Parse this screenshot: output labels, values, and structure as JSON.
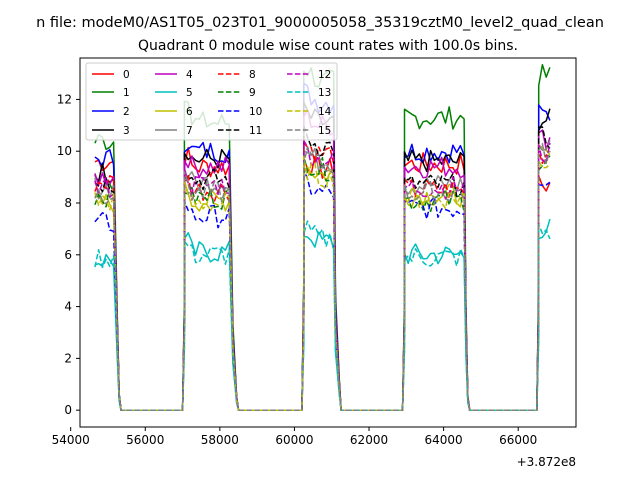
{
  "chart_data": {
    "type": "line",
    "suptitle": "n file: modeM0/AS1T05_023T01_9000005058_35319cztM0_level2_quad_clean",
    "title": "Quadrant 0 module wise count rates with 100.0s bins.",
    "xlabel": "",
    "ylabel": "",
    "x_offset_label": "+3.872e8",
    "xlim": [
      54250,
      67550
    ],
    "ylim": [
      -0.65,
      13.6
    ],
    "x_ticks": [
      54000,
      56000,
      58000,
      60000,
      62000,
      64000,
      66000
    ],
    "x_tick_labels": [
      "54000",
      "56000",
      "58000",
      "60000",
      "62000",
      "64000",
      "66000"
    ],
    "y_ticks": [
      0,
      2,
      4,
      6,
      8,
      10,
      12
    ],
    "y_tick_labels": [
      "0",
      "2",
      "4",
      "6",
      "8",
      "10",
      "12"
    ],
    "legend_position": "top-left",
    "legend_columns": 4,
    "segments": [
      {
        "start": 54650,
        "end": 55150
      },
      {
        "start": 57050,
        "end": 58250
      },
      {
        "start": 60250,
        "end": 61050
      },
      {
        "start": 62950,
        "end": 64550
      },
      {
        "start": 66550,
        "end": 66850
      }
    ],
    "gaps": [
      {
        "from": 55150,
        "to": 57050,
        "ramp_x": [
          55250,
          55300
        ],
        "ramp_frac": [
          0.35,
          0.06
        ]
      },
      {
        "from": 58250,
        "to": 60250,
        "ramp_x": [
          58350,
          58450
        ],
        "ramp_frac": [
          0.3,
          0.05
        ]
      },
      {
        "from": 61050,
        "to": 62950,
        "ramp_x": [
          61100,
          61200
        ],
        "ramp_frac": [
          0.35,
          0.1
        ]
      },
      {
        "from": 64550,
        "to": 66550,
        "ramp_x": [
          64600,
          64650
        ],
        "ramp_frac": [
          0.35,
          0.05
        ]
      }
    ],
    "series": [
      {
        "name": "0",
        "color": "#ff0000",
        "dash": "solid",
        "levels": [
          9.6,
          9.4,
          9.3,
          9.5,
          8.7
        ]
      },
      {
        "name": "1",
        "color": "#008000",
        "dash": "solid",
        "levels": [
          10.4,
          11.1,
          12.7,
          11.3,
          12.9
        ]
      },
      {
        "name": "2",
        "color": "#0000ff",
        "dash": "solid",
        "levels": [
          9.7,
          10.0,
          11.9,
          10.0,
          11.4
        ]
      },
      {
        "name": "3",
        "color": "#000000",
        "dash": "solid",
        "levels": [
          9.2,
          9.7,
          11.1,
          9.6,
          11.2
        ]
      },
      {
        "name": "4",
        "color": "#bf00bf",
        "dash": "solid",
        "levels": [
          9.0,
          9.4,
          11.0,
          9.4,
          10.5
        ]
      },
      {
        "name": "5",
        "color": "#00bfbf",
        "dash": "solid",
        "levels": [
          5.8,
          6.1,
          6.5,
          6.0,
          7.0
        ]
      },
      {
        "name": "6",
        "color": "#bfbf00",
        "dash": "solid",
        "levels": [
          8.0,
          8.1,
          9.1,
          8.3,
          9.8
        ]
      },
      {
        "name": "7",
        "color": "#808080",
        "dash": "solid",
        "levels": [
          8.6,
          8.8,
          9.6,
          8.7,
          10.1
        ]
      },
      {
        "name": "8",
        "color": "#ff0000",
        "dash": "dashed",
        "levels": [
          8.8,
          8.5,
          9.9,
          8.5,
          9.9
        ]
      },
      {
        "name": "9",
        "color": "#008000",
        "dash": "dashed",
        "levels": [
          8.3,
          8.2,
          9.3,
          8.1,
          9.6
        ]
      },
      {
        "name": "10",
        "color": "#0000ff",
        "dash": "dashed",
        "levels": [
          7.2,
          7.5,
          8.4,
          7.8,
          9.0
        ]
      },
      {
        "name": "11",
        "color": "#000000",
        "dash": "dashed",
        "levels": [
          8.8,
          8.9,
          10.2,
          8.7,
          10.5
        ]
      },
      {
        "name": "12",
        "color": "#bf00bf",
        "dash": "dashed",
        "levels": [
          8.6,
          8.7,
          9.7,
          8.6,
          9.9
        ]
      },
      {
        "name": "13",
        "color": "#00bfbf",
        "dash": "dashed",
        "levels": [
          5.9,
          6.0,
          6.6,
          5.9,
          6.9
        ]
      },
      {
        "name": "14",
        "color": "#bfbf00",
        "dash": "dashed",
        "levels": [
          8.1,
          8.0,
          9.0,
          8.2,
          9.6
        ]
      },
      {
        "name": "15",
        "color": "#808080",
        "dash": "dashed",
        "levels": [
          8.4,
          8.4,
          9.5,
          8.4,
          9.9
        ]
      }
    ]
  }
}
